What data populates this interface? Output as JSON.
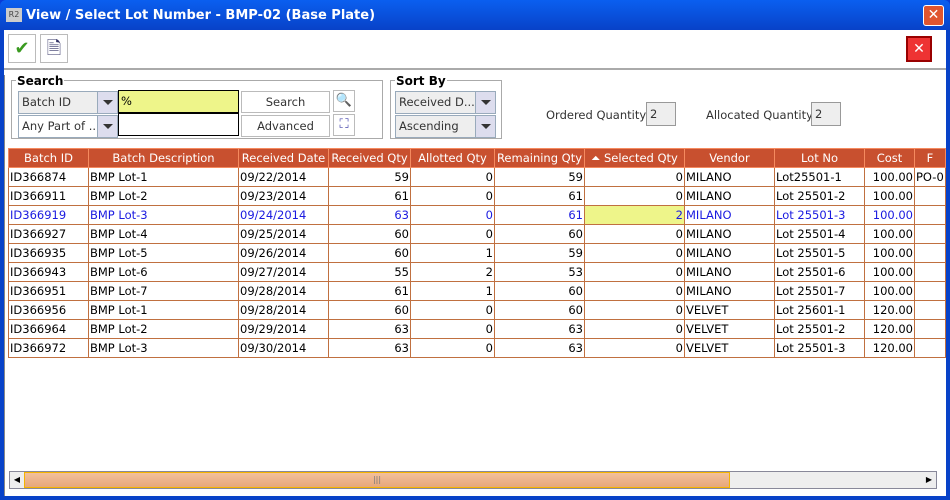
{
  "window": {
    "title": "View / Select Lot Number - BMP-02 (Base Plate)",
    "app_icon": "R2"
  },
  "toolbar": {
    "ok_icon": "checkmark-icon",
    "report_icon": "document-view-icon",
    "close_icon": "red-x-icon"
  },
  "search": {
    "legend": "Search",
    "field": "Batch ID",
    "match": "Any Part of ...",
    "value": "%",
    "value2": "",
    "search_label": "Search",
    "advanced_label": "Advanced"
  },
  "sort": {
    "legend": "Sort By",
    "field": "Received D...",
    "order": "Ascending"
  },
  "quantities": {
    "ordered_label": "Ordered Quantity",
    "ordered": "2",
    "allocated_label": "Allocated Quantity",
    "allocated": "2"
  },
  "table": {
    "columns": [
      "Batch ID",
      "Batch Description",
      "Received Date",
      "Received Qty",
      "Allotted Qty",
      "Remaining Qty",
      "Selected Qty",
      "Vendor",
      "Lot No",
      "Cost",
      "F"
    ],
    "sorted_column": "Selected Qty",
    "rows": [
      [
        "ID366874",
        "BMP Lot-1",
        "09/22/2014",
        "59",
        "0",
        "59",
        "0",
        "MILANO",
        "Lot25501-1",
        "100.00",
        "PO-0"
      ],
      [
        "ID366911",
        "BMP Lot-2",
        "09/23/2014",
        "61",
        "0",
        "61",
        "0",
        "MILANO",
        "Lot 25501-2",
        "100.00",
        ""
      ],
      [
        "ID366919",
        "BMP Lot-3",
        "09/24/2014",
        "63",
        "0",
        "61",
        "2",
        "MILANO",
        "Lot 25501-3",
        "100.00",
        ""
      ],
      [
        "ID366927",
        "BMP Lot-4",
        "09/25/2014",
        "60",
        "0",
        "60",
        "0",
        "MILANO",
        "Lot 25501-4",
        "100.00",
        ""
      ],
      [
        "ID366935",
        "BMP Lot-5",
        "09/26/2014",
        "60",
        "1",
        "59",
        "0",
        "MILANO",
        "Lot 25501-5",
        "100.00",
        ""
      ],
      [
        "ID366943",
        "BMP Lot-6",
        "09/27/2014",
        "55",
        "2",
        "53",
        "0",
        "MILANO",
        "Lot 25501-6",
        "100.00",
        ""
      ],
      [
        "ID366951",
        "BMP Lot-7",
        "09/28/2014",
        "61",
        "1",
        "60",
        "0",
        "MILANO",
        "Lot 25501-7",
        "100.00",
        ""
      ],
      [
        "ID366956",
        "BMP Lot-1",
        "09/28/2014",
        "60",
        "0",
        "60",
        "0",
        "VELVET",
        "Lot 25601-1",
        "120.00",
        ""
      ],
      [
        "ID366964",
        "BMP Lot-2",
        "09/29/2014",
        "63",
        "0",
        "63",
        "0",
        "VELVET",
        "Lot 25501-2",
        "120.00",
        ""
      ],
      [
        "ID366972",
        "BMP Lot-3",
        "09/30/2014",
        "63",
        "0",
        "63",
        "0",
        "VELVET",
        "Lot 25501-3",
        "120.00",
        ""
      ]
    ],
    "selected_row": 2
  }
}
